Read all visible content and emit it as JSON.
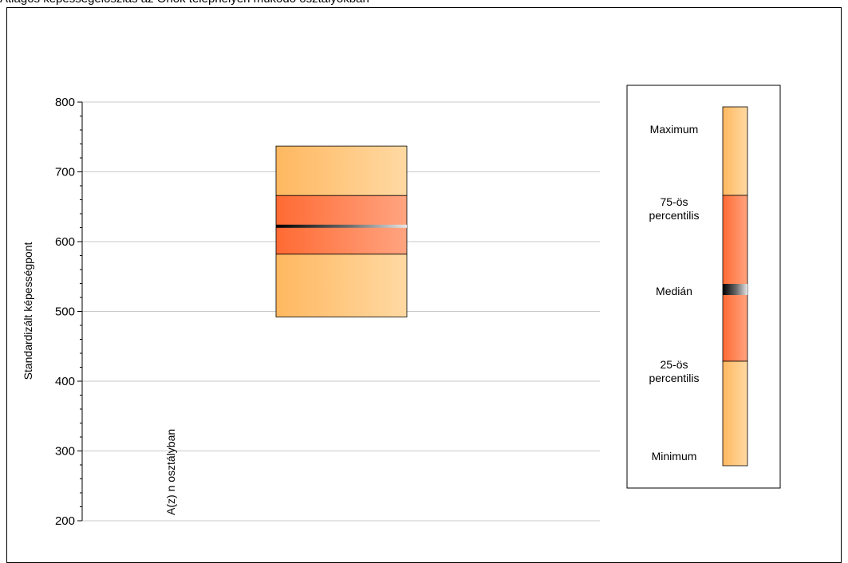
{
  "chart_data": {
    "type": "boxplot",
    "title": "Átlagos képességeloszlás az Önök telephelyén működő osztályokban",
    "ylabel": "Standardizált képességpont",
    "ylim": [
      200,
      800
    ],
    "yticks": [
      200,
      300,
      400,
      500,
      600,
      700,
      800
    ],
    "categories": [
      "A(z) n osztályban"
    ],
    "boxes": [
      {
        "category": "A(z) n osztályban",
        "min": 492,
        "q1": 582,
        "median": 622,
        "q3": 666,
        "max": 737
      }
    ],
    "grid": true
  },
  "legend": {
    "items": [
      "Maximum",
      "75-ös\npercentilis",
      "Medián",
      "25-ös\npercentilis",
      "Minimum"
    ]
  },
  "colors": {
    "outer_light": "#ffd9a3",
    "outer_dark": "#ffb860",
    "inner_light": "#ffa480",
    "inner_dark": "#ff6a33",
    "median": "#000000",
    "grid": "#c8c8c8"
  }
}
